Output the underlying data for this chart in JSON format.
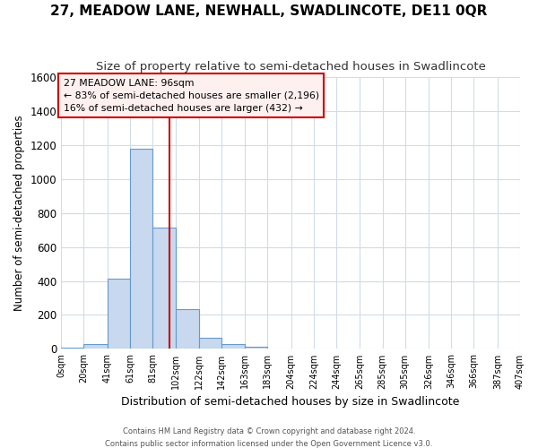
{
  "title": "27, MEADOW LANE, NEWHALL, SWADLINCOTE, DE11 0QR",
  "subtitle": "Size of property relative to semi-detached houses in Swadlincote",
  "xlabel": "Distribution of semi-detached houses by size in Swadlincote",
  "ylabel": "Number of semi-detached properties",
  "bin_edges": [
    0,
    20,
    41,
    61,
    81,
    102,
    122,
    142,
    163,
    183,
    204,
    224,
    244,
    265,
    285,
    305,
    326,
    346,
    366,
    387,
    407
  ],
  "bar_heights": [
    10,
    27,
    415,
    1175,
    715,
    232,
    68,
    27,
    15,
    0,
    0,
    0,
    0,
    0,
    0,
    0,
    0,
    0,
    0,
    0
  ],
  "bar_color": "#c8d8ee",
  "bar_edge_color": "#6699cc",
  "property_size": 96,
  "annot_line1": "27 MEADOW LANE: 96sqm",
  "annot_line2": "← 83% of semi-detached houses are smaller (2,196)",
  "annot_line3": "16% of semi-detached houses are larger (432) →",
  "annotation_box_facecolor": "#fff0f0",
  "annotation_border_color": "#cc0000",
  "vline_color": "#cc0000",
  "ylim": [
    0,
    1600
  ],
  "yticks": [
    0,
    200,
    400,
    600,
    800,
    1000,
    1200,
    1400,
    1600
  ],
  "footer_line1": "Contains HM Land Registry data © Crown copyright and database right 2024.",
  "footer_line2": "Contains public sector information licensed under the Open Government Licence v3.0.",
  "bg_color": "#ffffff",
  "plot_bg_color": "#ffffff",
  "grid_color": "#d0dce8",
  "title_fontsize": 11,
  "subtitle_fontsize": 9.5
}
